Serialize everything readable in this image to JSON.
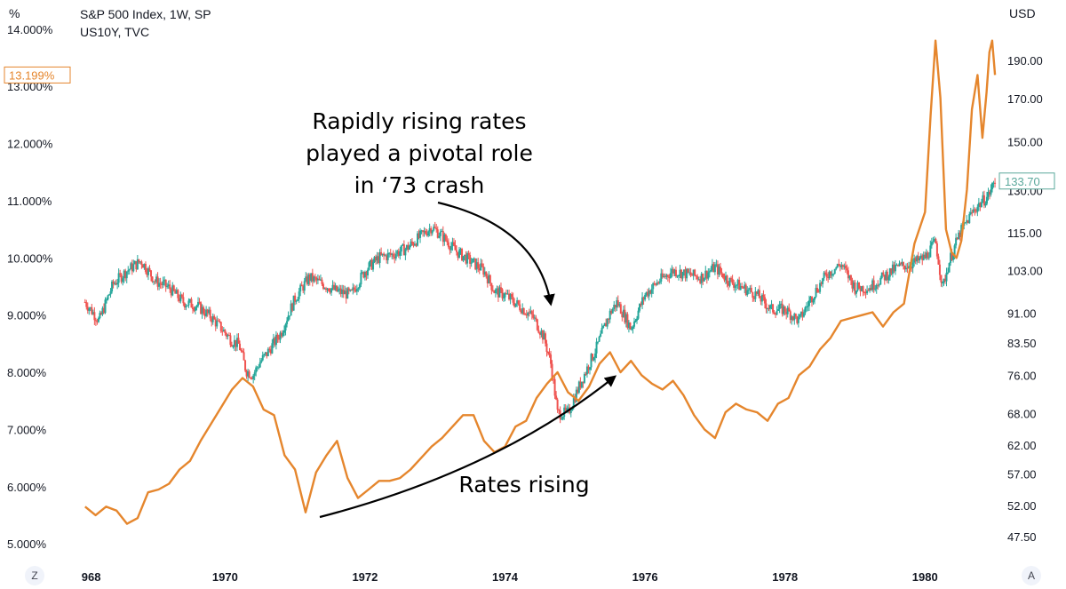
{
  "header": {
    "left_unit": "%",
    "right_unit": "USD",
    "series1_label": "S&P 500 Index, 1W, SP",
    "series2_label": "US10Y, TVC"
  },
  "buttons": {
    "left": "Z",
    "right": "A"
  },
  "colors": {
    "price_up": "#26a69a",
    "price_down": "#ef5350",
    "yield_line": "#e5862d",
    "price_tag": "#5aa89b",
    "axis_text": "#131722",
    "annotation": "#000000"
  },
  "chart_data": {
    "type": "line",
    "title": "S&P 500 Index, 1W, SP / US10Y, TVC",
    "x_ticks": [
      "968",
      "1970",
      "1972",
      "1974",
      "1976",
      "1978",
      "1980"
    ],
    "x_range": [
      1967.8,
      1981.05
    ],
    "left_axis": {
      "unit": "%",
      "ticks": [
        "14.000%",
        "13.000%",
        "12.000%",
        "11.000%",
        "10.000%",
        "9.000%",
        "8.000%",
        "7.000%",
        "6.000%",
        "5.000%"
      ],
      "range": [
        4.8,
        14.2
      ]
    },
    "right_axis": {
      "unit": "USD",
      "scale": "log",
      "ticks": [
        "190.00",
        "170.00",
        "150.00",
        "130.00",
        "115.00",
        "103.00",
        "91.00",
        "83.50",
        "76.00",
        "68.00",
        "62.00",
        "57.00",
        "52.00",
        "47.50"
      ]
    },
    "last_value_tags": {
      "yield": "13.199%",
      "sp500": "133.70"
    },
    "series": [
      {
        "name": "US10Y",
        "axis": "left",
        "x": [
          1968.0,
          1968.15,
          1968.3,
          1968.45,
          1968.6,
          1968.75,
          1968.9,
          1969.05,
          1969.2,
          1969.35,
          1969.5,
          1969.65,
          1969.8,
          1969.95,
          1970.1,
          1970.25,
          1970.4,
          1970.55,
          1970.7,
          1970.85,
          1971.0,
          1971.15,
          1971.3,
          1971.45,
          1971.6,
          1971.75,
          1971.9,
          1972.05,
          1972.2,
          1972.35,
          1972.5,
          1972.65,
          1972.8,
          1972.95,
          1973.1,
          1973.25,
          1973.4,
          1973.55,
          1973.7,
          1973.85,
          1974.0,
          1974.15,
          1974.3,
          1974.45,
          1974.6,
          1974.75,
          1974.9,
          1975.05,
          1975.2,
          1975.35,
          1975.5,
          1975.65,
          1975.8,
          1975.95,
          1976.1,
          1976.25,
          1976.4,
          1976.55,
          1976.7,
          1976.85,
          1977.0,
          1977.15,
          1977.3,
          1977.45,
          1977.6,
          1977.75,
          1977.9,
          1978.05,
          1978.2,
          1978.35,
          1978.5,
          1978.65,
          1978.8,
          1978.95,
          1979.1,
          1979.25,
          1979.4,
          1979.55,
          1979.7,
          1979.85,
          1980.0,
          1980.08,
          1980.15,
          1980.22,
          1980.3,
          1980.38,
          1980.45,
          1980.52,
          1980.6,
          1980.67,
          1980.75,
          1980.82,
          1980.88,
          1980.92,
          1980.96,
          1981.0
        ],
        "values": [
          5.65,
          5.5,
          5.65,
          5.58,
          5.35,
          5.45,
          5.9,
          5.95,
          6.05,
          6.3,
          6.45,
          6.8,
          7.1,
          7.4,
          7.7,
          7.9,
          7.75,
          7.35,
          7.25,
          6.55,
          6.3,
          5.55,
          6.25,
          6.55,
          6.8,
          6.15,
          5.8,
          5.95,
          6.1,
          6.1,
          6.15,
          6.3,
          6.5,
          6.7,
          6.85,
          7.05,
          7.25,
          7.25,
          6.8,
          6.6,
          6.7,
          7.05,
          7.15,
          7.55,
          7.8,
          8.0,
          7.65,
          7.5,
          7.75,
          8.15,
          8.35,
          8.0,
          8.2,
          7.95,
          7.8,
          7.7,
          7.85,
          7.6,
          7.25,
          7.0,
          6.85,
          7.3,
          7.45,
          7.35,
          7.3,
          7.15,
          7.45,
          7.55,
          7.95,
          8.1,
          8.4,
          8.6,
          8.9,
          8.95,
          9.0,
          9.05,
          8.8,
          9.05,
          9.2,
          10.25,
          10.8,
          12.5,
          13.8,
          12.8,
          10.5,
          10.1,
          10.0,
          10.3,
          11.2,
          12.6,
          13.2,
          12.1,
          12.9,
          13.6,
          13.8,
          13.2
        ]
      },
      {
        "name": "S&P 500",
        "axis": "right",
        "style": "candles",
        "x": [
          1968.0,
          1968.2,
          1968.4,
          1968.6,
          1968.8,
          1969.0,
          1969.2,
          1969.4,
          1969.6,
          1969.8,
          1970.0,
          1970.1,
          1970.2,
          1970.3,
          1970.4,
          1970.5,
          1970.6,
          1970.8,
          1971.0,
          1971.2,
          1971.4,
          1971.6,
          1971.8,
          1972.0,
          1972.2,
          1972.4,
          1972.6,
          1972.8,
          1972.95,
          1973.1,
          1973.3,
          1973.5,
          1973.7,
          1973.85,
          1974.0,
          1974.2,
          1974.4,
          1974.55,
          1974.65,
          1974.75,
          1974.9,
          1975.1,
          1975.3,
          1975.5,
          1975.6,
          1975.8,
          1976.0,
          1976.2,
          1976.4,
          1976.6,
          1976.8,
          1977.0,
          1977.2,
          1977.4,
          1977.6,
          1977.8,
          1978.0,
          1978.2,
          1978.4,
          1978.6,
          1978.8,
          1979.0,
          1979.2,
          1979.4,
          1979.6,
          1979.8,
          1980.0,
          1980.15,
          1980.25,
          1980.35,
          1980.5,
          1980.7,
          1980.9,
          1981.0
        ],
        "values": [
          94,
          89,
          99,
          103,
          106,
          100,
          98,
          94,
          93,
          90,
          86,
          84,
          83,
          77,
          76,
          79,
          81,
          86,
          95,
          101,
          99,
          97,
          96,
          103,
          107,
          108,
          110,
          114,
          117,
          114,
          109,
          106,
          103,
          97,
          96,
          93,
          90,
          85,
          79,
          68,
          68,
          75,
          82,
          91,
          94,
          87,
          96,
          100,
          103,
          102,
          101,
          104,
          100,
          98,
          96,
          92,
          92,
          89,
          96,
          102,
          105,
          98,
          98,
          101,
          104,
          105,
          107,
          112,
          98,
          106,
          115,
          123,
          128,
          133.7
        ]
      }
    ],
    "annotations": [
      {
        "text": "Rapidly rising rates\nplayed a pivotal role\nin ‘73 crash"
      },
      {
        "text": "Rates rising"
      }
    ]
  }
}
